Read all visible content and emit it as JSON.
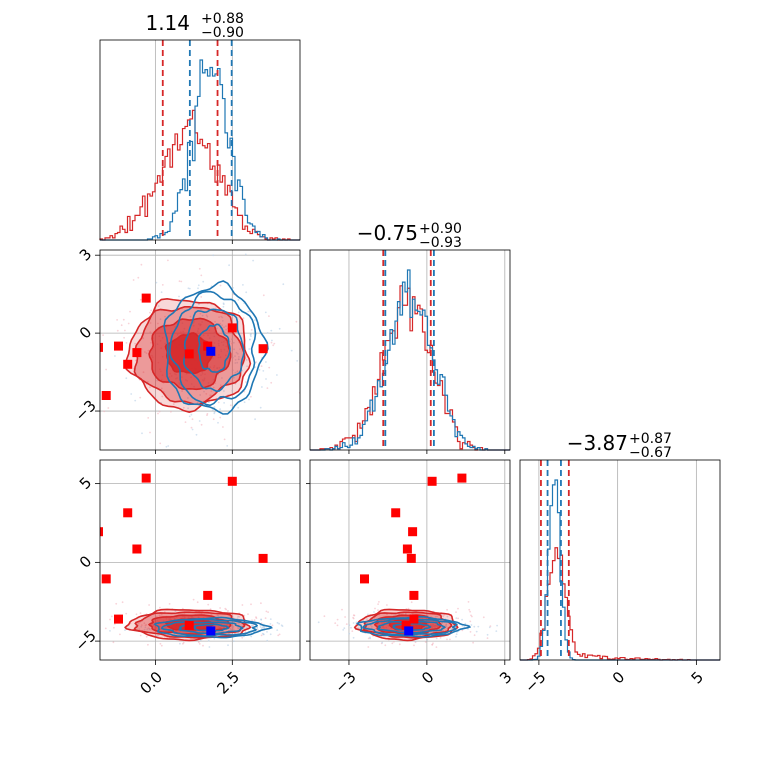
{
  "chart_data": {
    "type": "corner",
    "colors": {
      "red": "#d62728",
      "blue": "#1f77b4",
      "red_fill_light": "#f0a0a0",
      "marker_blue": "#0000ff",
      "marker_red": "#ff0000"
    },
    "grid": true,
    "parameters": [
      {
        "range": [
          -1.8,
          4.7
        ],
        "ticks": [
          0.0,
          2.5
        ],
        "tick_labels": [
          "0.0",
          "2.5"
        ],
        "title": {
          "median": "1.14",
          "plus": "+0.88",
          "minus": "−0.90"
        }
      },
      {
        "range": [
          -4.5,
          3.2
        ],
        "ticks": [
          -3,
          0,
          3
        ],
        "tick_labels": [
          "−3",
          "0",
          "3"
        ],
        "title": {
          "median": "−0.75",
          "plus": "+0.90",
          "minus": "−0.93"
        }
      },
      {
        "range": [
          -6.2,
          6.5
        ],
        "ticks": [
          -5,
          0,
          5
        ],
        "tick_labels": [
          "−5",
          "0",
          "5"
        ],
        "title": {
          "median": "−3.87",
          "plus": "+0.87",
          "minus": "−0.67"
        }
      }
    ],
    "quantiles": {
      "red": [
        [
          0.24,
          2.02
        ],
        [
          -1.68,
          0.15
        ],
        [
          -4.87,
          -3.1
        ]
      ],
      "blue": [
        [
          1.12,
          2.48
        ],
        [
          -1.6,
          0.27
        ],
        [
          -4.45,
          -3.6
        ]
      ]
    },
    "marginals": {
      "red": [
        {
          "mean": 1.1,
          "sd": 0.95
        },
        {
          "mean": -0.75,
          "sd": 0.92
        },
        {
          "mean": -3.9,
          "sd": 0.55
        }
      ],
      "blue": [
        {
          "mean": 1.8,
          "sd": 0.6
        },
        {
          "mean": -0.65,
          "sd": 0.9
        },
        {
          "mean": -4.0,
          "sd": 0.35
        }
      ]
    },
    "contours": {
      "p10": {
        "red": {
          "cx": 1.1,
          "cy": -0.8,
          "rx": [
            0.75,
            1.3,
            1.75,
            1.95
          ],
          "ry": [
            0.75,
            1.35,
            1.85,
            2.1
          ]
        },
        "blue": {
          "cx": 1.9,
          "cy": -0.6,
          "rx": [
            0.5,
            0.95,
            1.35,
            1.6
          ],
          "ry": [
            0.9,
            1.55,
            2.1,
            2.4
          ]
        }
      },
      "p20": {
        "red": {
          "cx": 1.1,
          "cy": -3.95,
          "rx": [
            0.75,
            1.3,
            1.75,
            1.95
          ],
          "ry": [
            0.35,
            0.6,
            0.8,
            0.95
          ]
        },
        "blue": {
          "cx": 1.8,
          "cy": -4.15,
          "rx": [
            0.55,
            1.0,
            1.5,
            1.8
          ],
          "ry": [
            0.2,
            0.35,
            0.5,
            0.6
          ]
        }
      },
      "p21": {
        "red": {
          "cx": -0.75,
          "cy": -3.95,
          "rx": [
            0.7,
            1.25,
            1.65,
            1.9
          ],
          "ry": [
            0.35,
            0.6,
            0.8,
            0.95
          ]
        },
        "blue": {
          "cx": -0.6,
          "cy": -4.1,
          "rx": [
            0.7,
            1.25,
            1.75,
            2.05
          ],
          "ry": [
            0.2,
            0.35,
            0.5,
            0.6
          ]
        }
      }
    },
    "markers": {
      "red_points": [
        [
          -0.3,
          1.35,
          5.35
        ],
        [
          -1.85,
          -0.55,
          1.95
        ],
        [
          -0.9,
          -1.2,
          3.15
        ],
        [
          -0.6,
          -0.75,
          0.85
        ],
        [
          2.5,
          0.2,
          5.15
        ],
        [
          3.5,
          -0.6,
          0.25
        ],
        [
          -1.6,
          -2.4,
          -1.05
        ],
        [
          1.1,
          -0.8,
          -4.0
        ],
        [
          -1.2,
          -0.5,
          -3.6
        ],
        [
          1.7,
          -0.5,
          -2.1
        ]
      ],
      "blue_point": [
        1.8,
        -0.7,
        -4.35
      ]
    }
  }
}
